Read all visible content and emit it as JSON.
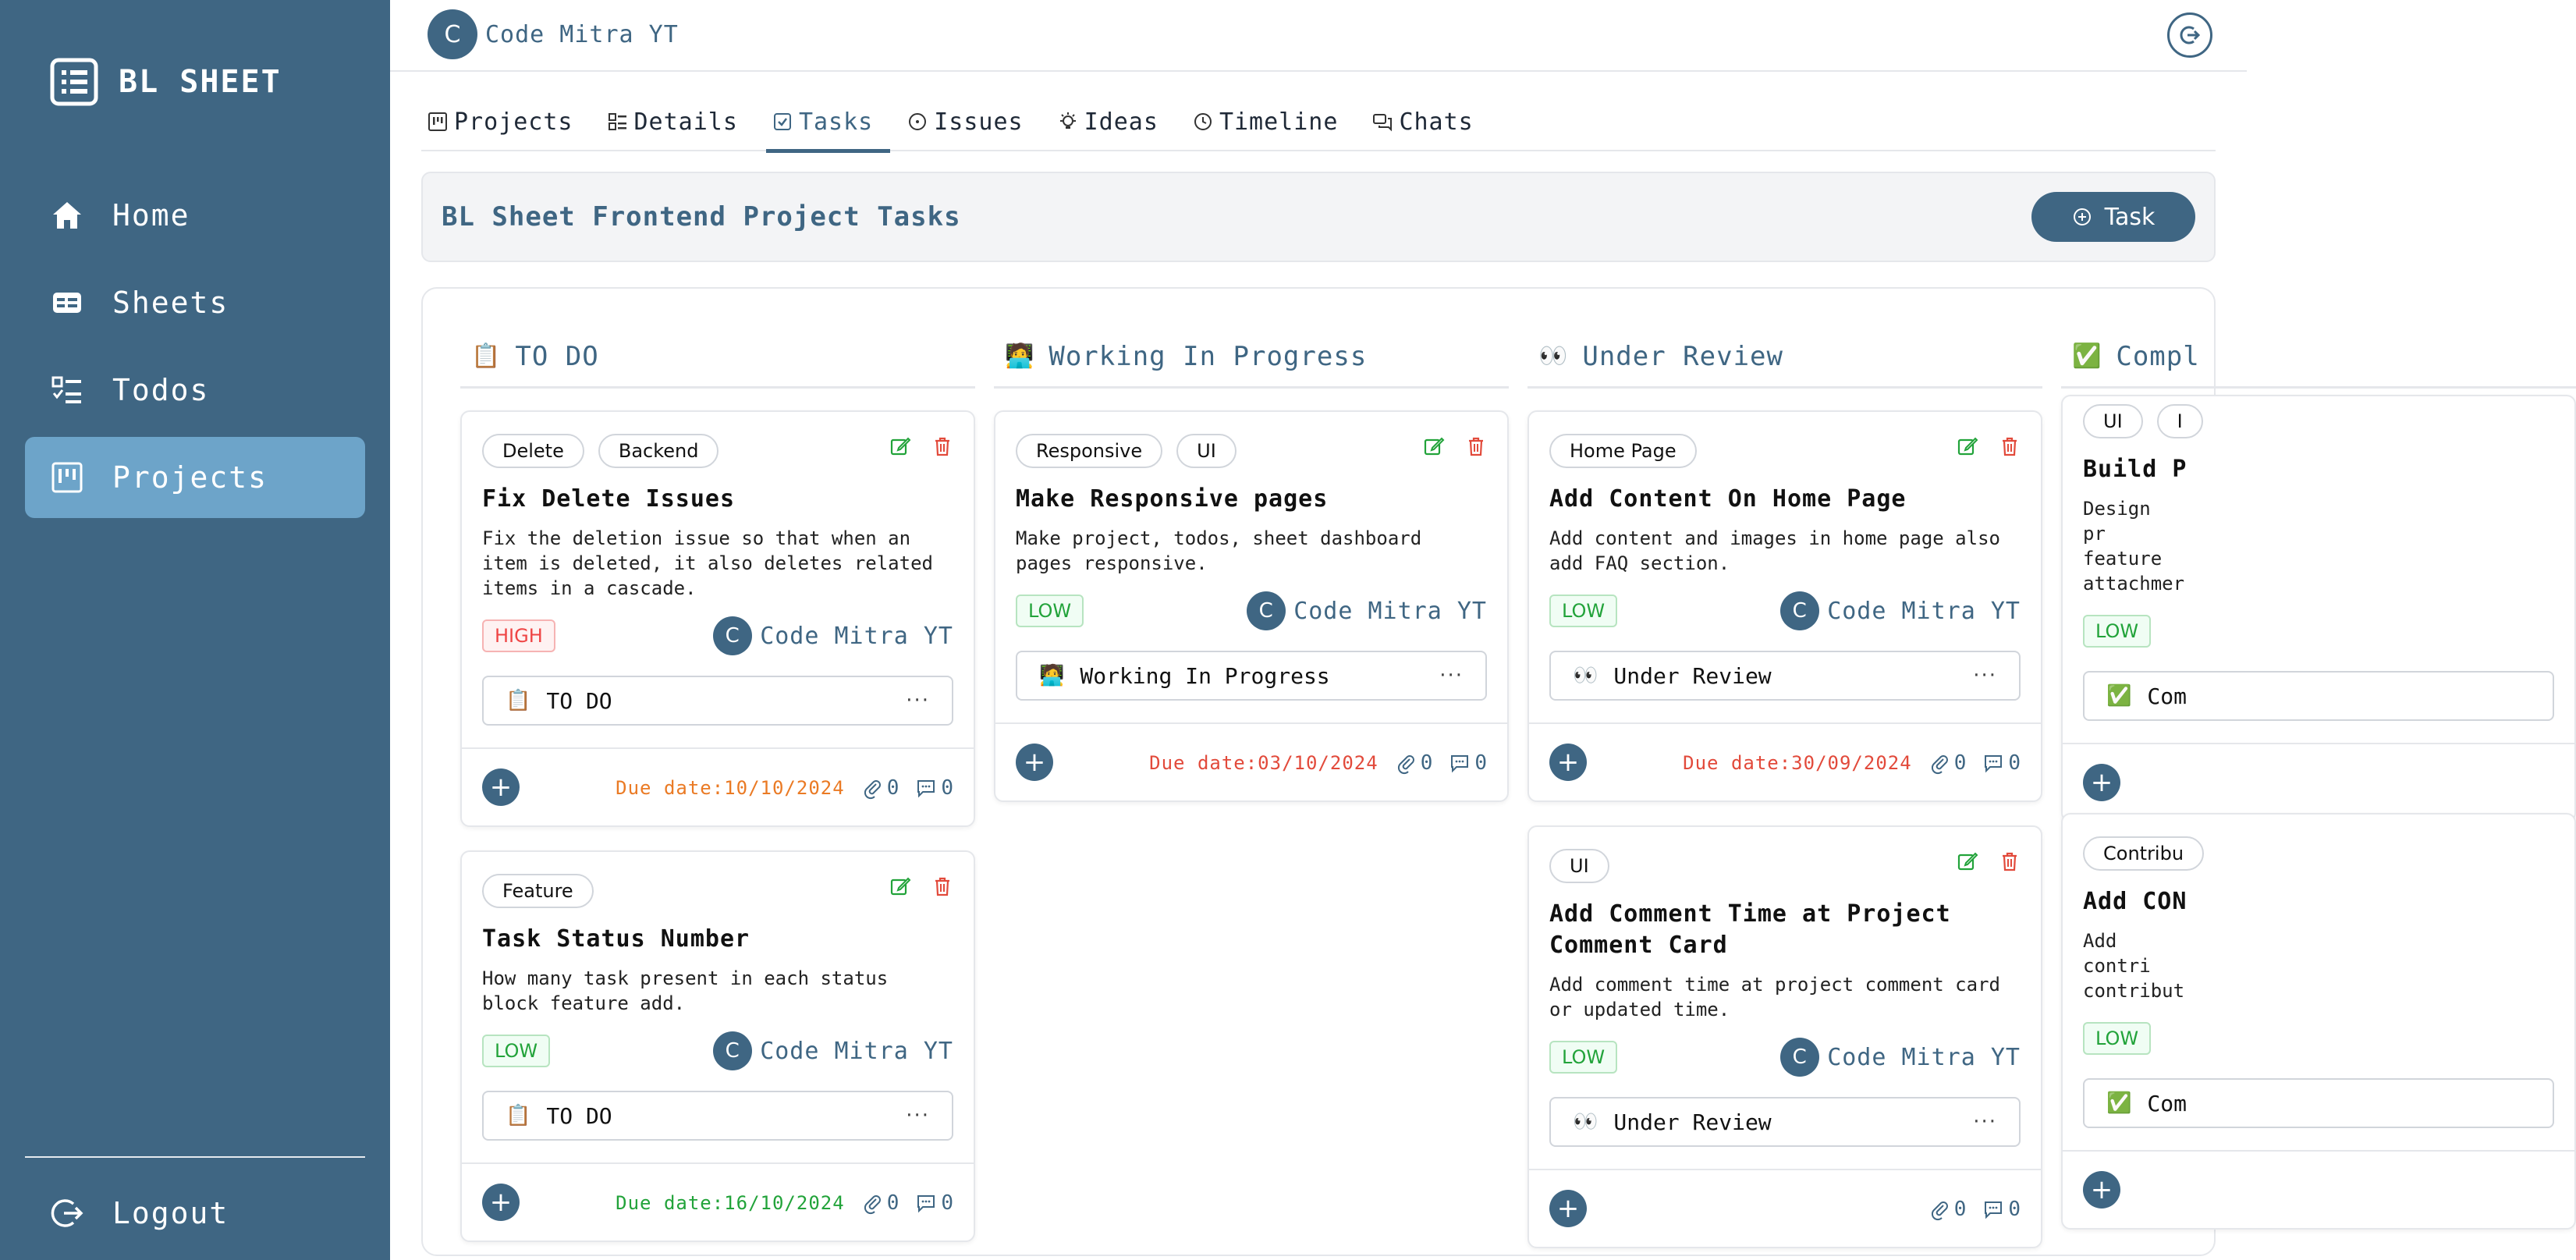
{
  "sidebar": {
    "brand": "BL SHEET",
    "items": [
      {
        "label": "Home",
        "icon": "home-icon"
      },
      {
        "label": "Sheets",
        "icon": "sheets-icon"
      },
      {
        "label": "Todos",
        "icon": "todos-icon"
      },
      {
        "label": "Projects",
        "icon": "projects-icon",
        "active": true
      }
    ],
    "logout": "Logout"
  },
  "topbar": {
    "user_initial": "C",
    "user_name": "Code Mitra YT"
  },
  "tabs": [
    {
      "label": "Projects",
      "icon": "kanban-icon"
    },
    {
      "label": "Details",
      "icon": "details-icon"
    },
    {
      "label": "Tasks",
      "icon": "checkbox-icon",
      "active": true
    },
    {
      "label": "Issues",
      "icon": "issue-circle-icon"
    },
    {
      "label": "Ideas",
      "icon": "bulb-icon"
    },
    {
      "label": "Timeline",
      "icon": "clock-icon"
    },
    {
      "label": "Chats",
      "icon": "chat-icon"
    }
  ],
  "header": {
    "title": "BL Sheet Frontend Project Tasks",
    "task_button": "Task"
  },
  "columns": [
    {
      "emoji": "📋",
      "title": "TO DO",
      "cards": [
        {
          "tags": [
            "Delete",
            "Backend"
          ],
          "title": "Fix Delete Issues",
          "description": "Fix the deletion issue so that when an item is deleted, it also deletes related items in a cascade.",
          "priority": "HIGH",
          "assignee_initial": "C",
          "assignee": "Code Mitra YT",
          "status_emoji": "📋",
          "status": "TO DO",
          "due": "Due date:10/10/2024",
          "attachments": "0",
          "comments": "0"
        },
        {
          "tags": [
            "Feature"
          ],
          "title": "Task Status Number",
          "description": "How many task present in each status block feature add.",
          "priority": "LOW",
          "assignee_initial": "C",
          "assignee": "Code Mitra YT",
          "status_emoji": "📋",
          "status": "TO DO",
          "due": "Due date:16/10/2024",
          "attachments": "0",
          "comments": "0"
        }
      ]
    },
    {
      "emoji": "🧑‍💻",
      "title": "Working In Progress",
      "cards": [
        {
          "tags": [
            "Responsive",
            "UI"
          ],
          "title": "Make Responsive pages",
          "description": "Make project, todos, sheet dashboard pages responsive.",
          "priority": "LOW",
          "assignee_initial": "C",
          "assignee": "Code Mitra YT",
          "status_emoji": "🧑‍💻",
          "status": "Working In Progress",
          "due": "Due date:03/10/2024",
          "attachments": "0",
          "comments": "0"
        }
      ]
    },
    {
      "emoji": "👀",
      "title": "Under Review",
      "cards": [
        {
          "tags": [
            "Home Page"
          ],
          "title": "Add Content On Home Page",
          "description": "Add content and images in home page also add FAQ section.",
          "priority": "LOW",
          "assignee_initial": "C",
          "assignee": "Code Mitra YT",
          "status_emoji": "👀",
          "status": "Under Review",
          "due": "Due date:30/09/2024",
          "attachments": "0",
          "comments": "0"
        },
        {
          "tags": [
            "UI"
          ],
          "title": "Add Comment Time at Project Comment Card",
          "description": "Add comment time at project comment card or updated time.",
          "priority": "LOW",
          "assignee_initial": "C",
          "assignee": "Code Mitra YT",
          "status_emoji": "👀",
          "status": "Under Review",
          "due": "",
          "attachments": "0",
          "comments": "0"
        }
      ]
    },
    {
      "emoji": "✅",
      "title": "Compl",
      "cards": [
        {
          "tags": [
            "UI",
            "I"
          ],
          "title": "Build P",
          "description": "Design pr feature attachmer",
          "priority": "LOW",
          "status_emoji": "✅",
          "status": "Com"
        },
        {
          "tags": [
            "Contribu"
          ],
          "title": "Add CON",
          "description": "Add contri contribut",
          "priority": "LOW",
          "status_emoji": "✅",
          "status": "Com"
        }
      ]
    }
  ],
  "colors": {
    "sidebar": "#3f6683",
    "sidebar_active": "#6da4c9",
    "primary": "#3f6683",
    "high": "#ef4444",
    "low": "#22a33a",
    "due_orange": "#ea7a24",
    "due_red": "#e24a3b"
  }
}
